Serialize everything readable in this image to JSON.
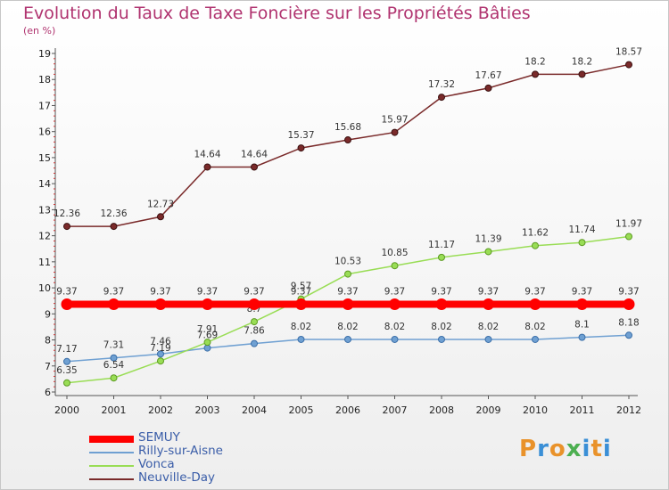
{
  "chart_data": {
    "type": "line",
    "title": "Evolution du Taux de Taxe Foncière sur les Propriétés Bâties",
    "ylabel": "(en %)",
    "xlabel": "",
    "ylim": [
      6,
      19
    ],
    "y_ticks": [
      6,
      7,
      8,
      9,
      10,
      11,
      12,
      13,
      14,
      15,
      16,
      17,
      18,
      19
    ],
    "x": [
      "2000",
      "2001",
      "2002",
      "2003",
      "2004",
      "2005",
      "2006",
      "2007",
      "2008",
      "2009",
      "2010",
      "2011",
      "2012"
    ],
    "series": [
      {
        "name": "SEMUY",
        "color": "#ff0000",
        "values": [
          9.37,
          9.37,
          9.37,
          9.37,
          9.37,
          9.37,
          9.37,
          9.37,
          9.37,
          9.37,
          9.37,
          9.37,
          9.37
        ],
        "labels": [
          "9.37",
          "9.37",
          "9.37",
          "9.37",
          "9.37",
          "9.37",
          "9.37",
          "9.37",
          "9.37",
          "9.37",
          "9.37",
          "9.37",
          "9.37"
        ]
      },
      {
        "name": "Rilly-sur-Aisne",
        "color": "#6fa0d2",
        "values": [
          7.17,
          7.31,
          7.46,
          7.69,
          7.86,
          8.02,
          8.02,
          8.02,
          8.02,
          8.02,
          8.02,
          8.1,
          8.18
        ],
        "labels": [
          "7.17",
          "7.31",
          "7.46",
          "7.69",
          "7.86",
          "8.02",
          "8.02",
          "8.02",
          "8.02",
          "8.02",
          "8.02",
          "8.1",
          "8.18"
        ]
      },
      {
        "name": "Vonca",
        "color": "#99dd55",
        "values": [
          6.35,
          6.54,
          7.19,
          7.91,
          8.7,
          9.57,
          10.53,
          10.85,
          11.17,
          11.39,
          11.62,
          11.74,
          11.97
        ],
        "labels": [
          "6.35",
          "6.54",
          "7.19",
          "7.91",
          "8.7",
          "9.57",
          "10.53",
          "10.85",
          "11.17",
          "11.39",
          "11.62",
          "11.74",
          "11.97"
        ]
      },
      {
        "name": "Neuville-Day",
        "color": "#7a2a2a",
        "values": [
          12.36,
          12.36,
          12.73,
          14.64,
          14.64,
          15.37,
          15.68,
          15.97,
          17.32,
          17.67,
          18.2,
          18.2,
          18.57
        ],
        "labels": [
          "12.36",
          "12.36",
          "12.73",
          "14.64",
          "14.64",
          "15.37",
          "15.68",
          "15.97",
          "17.32",
          "17.67",
          "18.2",
          "18.2",
          "18.57"
        ]
      }
    ]
  },
  "legend": {
    "items": [
      {
        "name": "SEMUY",
        "color": "#ff0000"
      },
      {
        "name": "Rilly-sur-Aisne",
        "color": "#6fa0d2"
      },
      {
        "name": "Vonca",
        "color": "#99dd55"
      },
      {
        "name": "Neuville-Day",
        "color": "#7a2a2a"
      }
    ]
  },
  "logo": {
    "text": "Proxiti",
    "colors": [
      "#e9922a",
      "#3a8fd6",
      "#e9922a",
      "#4caf50",
      "#3a8fd6",
      "#e9922a",
      "#3a8fd6"
    ]
  }
}
